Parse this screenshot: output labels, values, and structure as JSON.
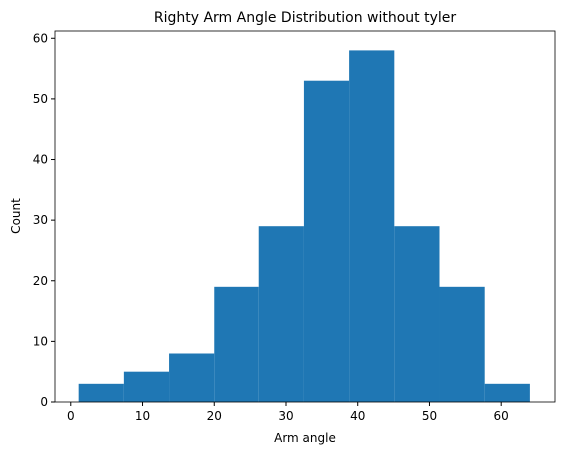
{
  "chart_data": {
    "type": "histogram",
    "title": "Righty Arm Angle Distribution without tyler",
    "x_label": "Arm angle",
    "y_label": "Count",
    "bins": [
      1.1,
      7.4,
      13.7,
      20.0,
      26.2,
      32.5,
      38.8,
      45.1,
      51.4,
      57.7,
      64.0
    ],
    "values": [
      3,
      5,
      8,
      19,
      29,
      53,
      58,
      29,
      19,
      3
    ],
    "color": "#1f77b4",
    "xlim": [
      -2.2,
      67.5
    ],
    "xticks": [
      0,
      10,
      20,
      30,
      40,
      50,
      60
    ],
    "ylim": [
      0,
      61.2
    ],
    "yticks": [
      0,
      10,
      20,
      30,
      40,
      50,
      60
    ],
    "grid": false
  }
}
